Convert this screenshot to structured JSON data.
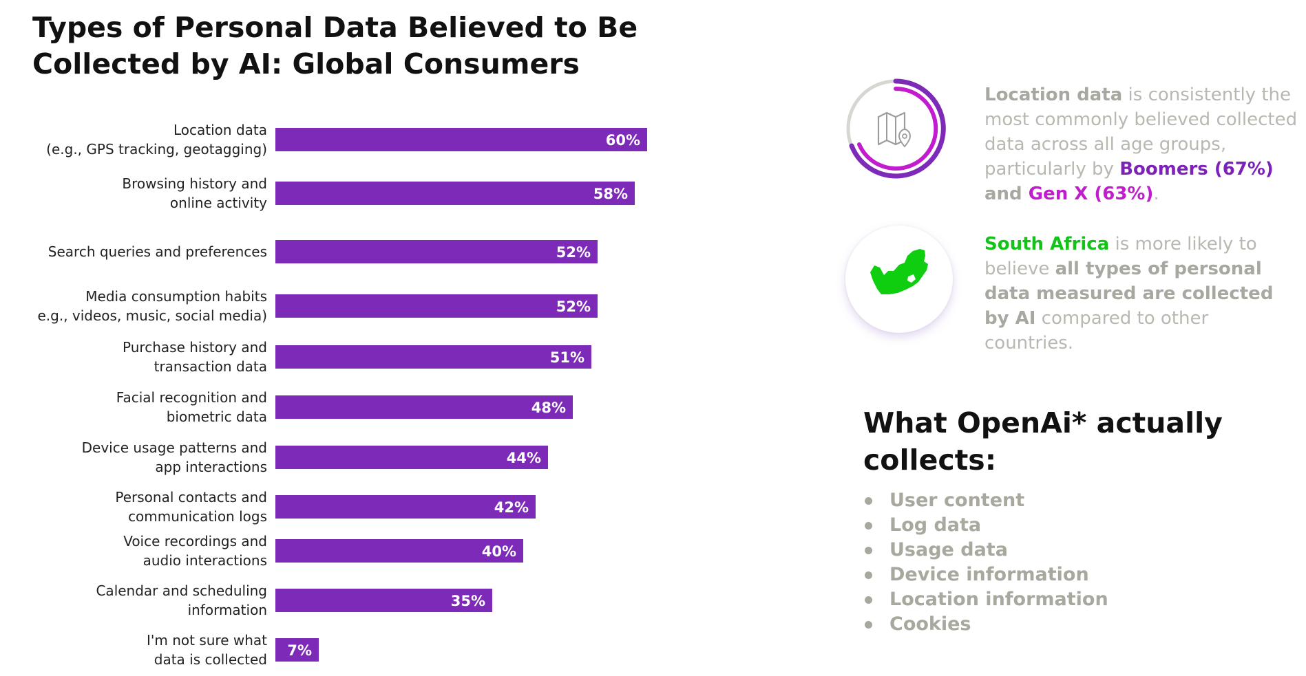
{
  "chart_data": {
    "type": "bar",
    "orientation": "horizontal",
    "title": "Types of Personal Data Believed to Be Collected by AI: Global Consumers",
    "categories": [
      [
        "Location data",
        "(e.g., GPS tracking, geotagging)"
      ],
      [
        "Browsing history and",
        "online activity"
      ],
      [
        "Search queries and preferences"
      ],
      [
        "Media consumption habits",
        "e.g., videos, music, social media)"
      ],
      [
        "Purchase history and",
        "transaction data"
      ],
      [
        "Facial recognition and",
        "biometric data"
      ],
      [
        "Device usage patterns and",
        "app interactions"
      ],
      [
        "Personal contacts and",
        "communication logs"
      ],
      [
        "Voice recordings and",
        "audio interactions"
      ],
      [
        "Calendar and scheduling",
        "information"
      ],
      [
        "I'm not sure what",
        "data is collected"
      ]
    ],
    "values": [
      60,
      58,
      52,
      52,
      51,
      48,
      44,
      42,
      40,
      35,
      7
    ],
    "value_labels": [
      "60%",
      "58%",
      "52%",
      "52%",
      "51%",
      "48%",
      "44%",
      "42%",
      "40%",
      "35%",
      "7%"
    ],
    "unit": "%",
    "bar_color": "#7d2ab8",
    "xlim": [
      0,
      100
    ],
    "grid": false,
    "legend": "none"
  },
  "colors": {
    "bar": "#7d2ab8",
    "purple": "#7d22b8",
    "magenta": "#c21ccf",
    "green": "#15c21a",
    "gray_text": "#b8b8b0"
  },
  "callouts": {
    "location": {
      "icon": "map-pin-ring-icon",
      "bold_lead": "Location data",
      "text_1": " is consistently the most commonly believed collected data across all age groups, particularly by ",
      "boomers": "Boomers (67%)",
      "text_2": " and ",
      "genx": "Gen X (63%)",
      "text_3": "."
    },
    "south_africa": {
      "icon": "south-africa-map-icon",
      "bold_lead": "South Africa",
      "text_1": " is more likely to believe ",
      "bold_mid": "all types of personal data measured are collected by AI",
      "text_2": " compared to other countries."
    }
  },
  "openai": {
    "title": "What OpenAi* actually collects:",
    "items": [
      "User content",
      "Log data",
      "Usage data",
      "Device information",
      "Location information",
      "Cookies"
    ]
  }
}
